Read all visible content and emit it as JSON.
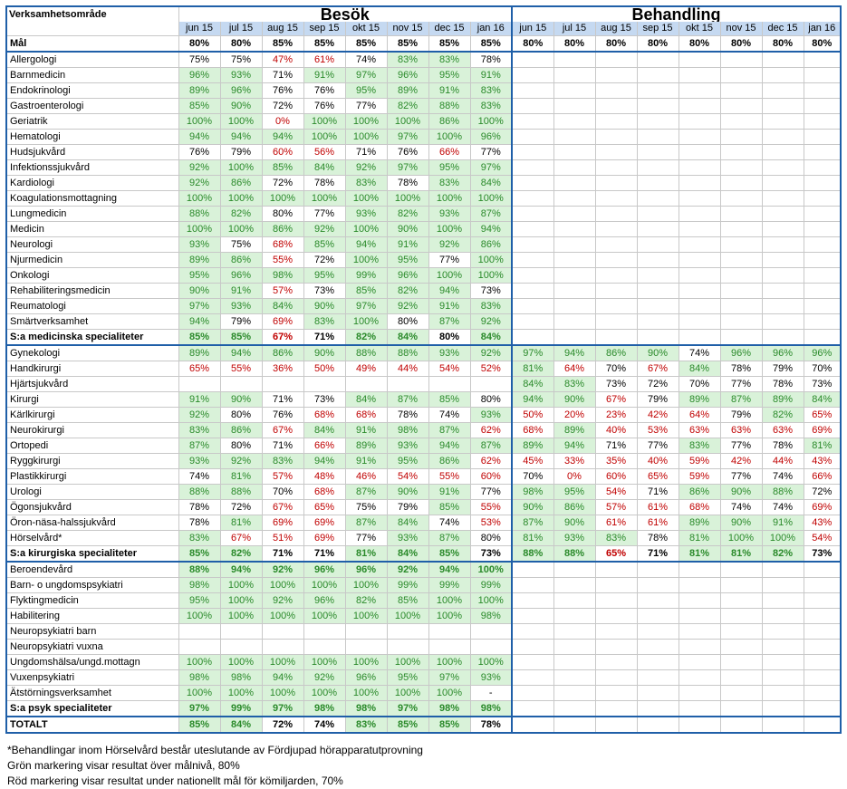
{
  "header": {
    "area_label": "Verksamhetsområde",
    "besok_title": "Besök",
    "behandling_title": "Behandling",
    "months": [
      "jun 15",
      "jul 15",
      "aug 15",
      "sep 15",
      "okt 15",
      "nov 15",
      "dec 15",
      "jan 16"
    ],
    "goal_label": "Mål",
    "goal_besok": [
      "80%",
      "80%",
      "85%",
      "85%",
      "85%",
      "85%",
      "85%",
      "85%"
    ],
    "goal_behandling": [
      "80%",
      "80%",
      "80%",
      "80%",
      "80%",
      "80%",
      "80%",
      "80%"
    ]
  },
  "groups": [
    {
      "rows": [
        {
          "name": "Allergologi",
          "besok": [
            "75%",
            "75%",
            "47%",
            "61%",
            "74%",
            "83%",
            "83%",
            "78%"
          ],
          "beh": []
        },
        {
          "name": "Barnmedicin",
          "besok": [
            "96%",
            "93%",
            "71%",
            "91%",
            "97%",
            "96%",
            "95%",
            "91%"
          ],
          "beh": []
        },
        {
          "name": "Endokrinologi",
          "besok": [
            "89%",
            "96%",
            "76%",
            "76%",
            "95%",
            "89%",
            "91%",
            "83%"
          ],
          "beh": []
        },
        {
          "name": "Gastroenterologi",
          "besok": [
            "85%",
            "90%",
            "72%",
            "76%",
            "77%",
            "82%",
            "88%",
            "83%"
          ],
          "beh": []
        },
        {
          "name": "Geriatrik",
          "besok": [
            "100%",
            "100%",
            "0%",
            "100%",
            "100%",
            "100%",
            "86%",
            "100%"
          ],
          "beh": []
        },
        {
          "name": "Hematologi",
          "besok": [
            "94%",
            "94%",
            "94%",
            "100%",
            "100%",
            "97%",
            "100%",
            "96%"
          ],
          "beh": []
        },
        {
          "name": "Hudsjukvård",
          "besok": [
            "76%",
            "79%",
            "60%",
            "56%",
            "71%",
            "76%",
            "66%",
            "77%"
          ],
          "beh": []
        },
        {
          "name": "Infektionssjukvård",
          "besok": [
            "92%",
            "100%",
            "85%",
            "84%",
            "92%",
            "97%",
            "95%",
            "97%"
          ],
          "beh": []
        },
        {
          "name": "Kardiologi",
          "besok": [
            "92%",
            "86%",
            "72%",
            "78%",
            "83%",
            "78%",
            "83%",
            "84%"
          ],
          "beh": []
        },
        {
          "name": "Koagulationsmottagning",
          "besok": [
            "100%",
            "100%",
            "100%",
            "100%",
            "100%",
            "100%",
            "100%",
            "100%"
          ],
          "beh": []
        },
        {
          "name": "Lungmedicin",
          "besok": [
            "88%",
            "82%",
            "80%",
            "77%",
            "93%",
            "82%",
            "93%",
            "87%"
          ],
          "beh": []
        },
        {
          "name": "Medicin",
          "besok": [
            "100%",
            "100%",
            "86%",
            "92%",
            "100%",
            "90%",
            "100%",
            "94%"
          ],
          "beh": []
        },
        {
          "name": "Neurologi",
          "besok": [
            "93%",
            "75%",
            "68%",
            "85%",
            "94%",
            "91%",
            "92%",
            "86%"
          ],
          "beh": []
        },
        {
          "name": "Njurmedicin",
          "besok": [
            "89%",
            "86%",
            "55%",
            "72%",
            "100%",
            "95%",
            "77%",
            "100%"
          ],
          "beh": []
        },
        {
          "name": "Onkologi",
          "besok": [
            "95%",
            "96%",
            "98%",
            "95%",
            "99%",
            "96%",
            "100%",
            "100%"
          ],
          "beh": []
        },
        {
          "name": "Rehabiliteringsmedicin",
          "besok": [
            "90%",
            "91%",
            "57%",
            "73%",
            "85%",
            "82%",
            "94%",
            "73%"
          ],
          "beh": []
        },
        {
          "name": "Reumatologi",
          "besok": [
            "97%",
            "93%",
            "84%",
            "90%",
            "97%",
            "92%",
            "91%",
            "83%"
          ],
          "beh": []
        },
        {
          "name": "Smärtverksamhet",
          "besok": [
            "94%",
            "79%",
            "69%",
            "83%",
            "100%",
            "80%",
            "87%",
            "92%"
          ],
          "beh": []
        },
        {
          "name": "S:a medicinska specialiteter",
          "bold": true,
          "besok": [
            "85%",
            "85%",
            "67%",
            "71%",
            "82%",
            "84%",
            "80%",
            "84%"
          ],
          "beh": []
        }
      ]
    },
    {
      "rows": [
        {
          "name": "Gynekologi",
          "besok": [
            "89%",
            "94%",
            "86%",
            "90%",
            "88%",
            "88%",
            "93%",
            "92%"
          ],
          "beh": [
            "97%",
            "94%",
            "86%",
            "90%",
            "74%",
            "96%",
            "96%",
            "96%"
          ]
        },
        {
          "name": "Handkirurgi",
          "besok": [
            "65%",
            "55%",
            "36%",
            "50%",
            "49%",
            "44%",
            "54%",
            "52%"
          ],
          "beh": [
            "81%",
            "64%",
            "70%",
            "67%",
            "84%",
            "78%",
            "79%",
            "70%"
          ]
        },
        {
          "name": "Hjärtsjukvård",
          "besok": [
            "",
            "",
            "",
            "",
            "",
            "",
            "",
            ""
          ],
          "beh": [
            "84%",
            "83%",
            "73%",
            "72%",
            "70%",
            "77%",
            "78%",
            "73%"
          ]
        },
        {
          "name": "Kirurgi",
          "besok": [
            "91%",
            "90%",
            "71%",
            "73%",
            "84%",
            "87%",
            "85%",
            "80%"
          ],
          "beh": [
            "94%",
            "90%",
            "67%",
            "79%",
            "89%",
            "87%",
            "89%",
            "84%"
          ]
        },
        {
          "name": "Kärlkirurgi",
          "besok": [
            "92%",
            "80%",
            "76%",
            "68%",
            "68%",
            "78%",
            "74%",
            "93%"
          ],
          "beh": [
            "50%",
            "20%",
            "23%",
            "42%",
            "64%",
            "79%",
            "82%",
            "65%"
          ]
        },
        {
          "name": "Neurokirurgi",
          "besok": [
            "83%",
            "86%",
            "67%",
            "84%",
            "91%",
            "98%",
            "87%",
            "62%"
          ],
          "beh": [
            "68%",
            "89%",
            "40%",
            "53%",
            "63%",
            "63%",
            "63%",
            "69%"
          ]
        },
        {
          "name": "Ortopedi",
          "besok": [
            "87%",
            "80%",
            "71%",
            "66%",
            "89%",
            "93%",
            "94%",
            "87%"
          ],
          "beh": [
            "89%",
            "94%",
            "71%",
            "77%",
            "83%",
            "77%",
            "78%",
            "81%"
          ]
        },
        {
          "name": "Ryggkirurgi",
          "besok": [
            "93%",
            "92%",
            "83%",
            "94%",
            "91%",
            "95%",
            "86%",
            "62%"
          ],
          "beh": [
            "45%",
            "33%",
            "35%",
            "40%",
            "59%",
            "42%",
            "44%",
            "43%"
          ]
        },
        {
          "name": "Plastikkirurgi",
          "besok": [
            "74%",
            "81%",
            "57%",
            "48%",
            "46%",
            "54%",
            "55%",
            "60%"
          ],
          "beh": [
            "70%",
            "0%",
            "60%",
            "65%",
            "59%",
            "77%",
            "74%",
            "66%"
          ]
        },
        {
          "name": "Urologi",
          "besok": [
            "88%",
            "88%",
            "70%",
            "68%",
            "87%",
            "90%",
            "91%",
            "77%"
          ],
          "beh": [
            "98%",
            "95%",
            "54%",
            "71%",
            "86%",
            "90%",
            "88%",
            "72%"
          ]
        },
        {
          "name": "Ögonsjukvård",
          "besok": [
            "78%",
            "72%",
            "67%",
            "65%",
            "75%",
            "79%",
            "85%",
            "55%"
          ],
          "beh": [
            "90%",
            "86%",
            "57%",
            "61%",
            "68%",
            "74%",
            "74%",
            "69%"
          ]
        },
        {
          "name": "Öron-näsa-halssjukvård",
          "besok": [
            "78%",
            "81%",
            "69%",
            "69%",
            "87%",
            "84%",
            "74%",
            "53%"
          ],
          "beh": [
            "87%",
            "90%",
            "61%",
            "61%",
            "89%",
            "90%",
            "91%",
            "43%"
          ]
        },
        {
          "name": "Hörselvård*",
          "besok": [
            "83%",
            "67%",
            "51%",
            "69%",
            "77%",
            "93%",
            "87%",
            "80%"
          ],
          "beh": [
            "81%",
            "93%",
            "83%",
            "78%",
            "81%",
            "100%",
            "100%",
            "54%"
          ]
        },
        {
          "name": "S:a kirurgiska specialiteter",
          "bold": true,
          "besok": [
            "85%",
            "82%",
            "71%",
            "71%",
            "81%",
            "84%",
            "85%",
            "73%"
          ],
          "beh": [
            "88%",
            "88%",
            "65%",
            "71%",
            "81%",
            "81%",
            "82%",
            "73%"
          ]
        }
      ]
    },
    {
      "rows": [
        {
          "name": "Beroendevård",
          "besok": [
            "88%",
            "94%",
            "92%",
            "96%",
            "96%",
            "92%",
            "94%",
            "100%"
          ],
          "beh": [],
          "boldvals": true
        },
        {
          "name": "Barn- o ungdomspsykiatri",
          "besok": [
            "98%",
            "100%",
            "100%",
            "100%",
            "100%",
            "99%",
            "99%",
            "99%"
          ],
          "beh": []
        },
        {
          "name": "Flyktingmedicin",
          "besok": [
            "95%",
            "100%",
            "92%",
            "96%",
            "82%",
            "85%",
            "100%",
            "100%"
          ],
          "beh": []
        },
        {
          "name": "Habilitering",
          "besok": [
            "100%",
            "100%",
            "100%",
            "100%",
            "100%",
            "100%",
            "100%",
            "98%"
          ],
          "beh": []
        },
        {
          "name": "Neuropsykiatri barn",
          "besok": [
            "",
            "",
            "",
            "",
            "",
            "",
            "",
            ""
          ],
          "beh": []
        },
        {
          "name": "Neuropsykiatri vuxna",
          "besok": [
            "",
            "",
            "",
            "",
            "",
            "",
            "",
            ""
          ],
          "beh": []
        },
        {
          "name": "Ungdomshälsa/ungd.mottagn",
          "besok": [
            "100%",
            "100%",
            "100%",
            "100%",
            "100%",
            "100%",
            "100%",
            "100%"
          ],
          "beh": []
        },
        {
          "name": "Vuxenpsykiatri",
          "besok": [
            "98%",
            "98%",
            "94%",
            "92%",
            "96%",
            "95%",
            "97%",
            "93%"
          ],
          "beh": []
        },
        {
          "name": "Ätstörningsverksamhet",
          "besok": [
            "100%",
            "100%",
            "100%",
            "100%",
            "100%",
            "100%",
            "100%",
            "-"
          ],
          "beh": []
        },
        {
          "name": "S:a psyk specialiteter",
          "bold": true,
          "besok": [
            "97%",
            "99%",
            "97%",
            "98%",
            "98%",
            "97%",
            "98%",
            "98%"
          ],
          "beh": []
        }
      ]
    }
  ],
  "total": {
    "name": "TOTALT",
    "besok": [
      "85%",
      "84%",
      "72%",
      "74%",
      "83%",
      "85%",
      "85%",
      "78%"
    ]
  },
  "notes": [
    "*Behandlingar inom Hörselvård består uteslutande av Fördjupad hörapparatutprovning",
    "Grön markering visar resultat över målnivå, 80%",
    "Röd markering visar resultat under nationellt mål för kömiljarden, 70%"
  ],
  "colors": {
    "green_bg": "#d9f2d9",
    "green_text": "#2a8a2a",
    "red_text": "#c00000",
    "header_bg": "#c5d9f1",
    "border": "#1f5fa8"
  }
}
